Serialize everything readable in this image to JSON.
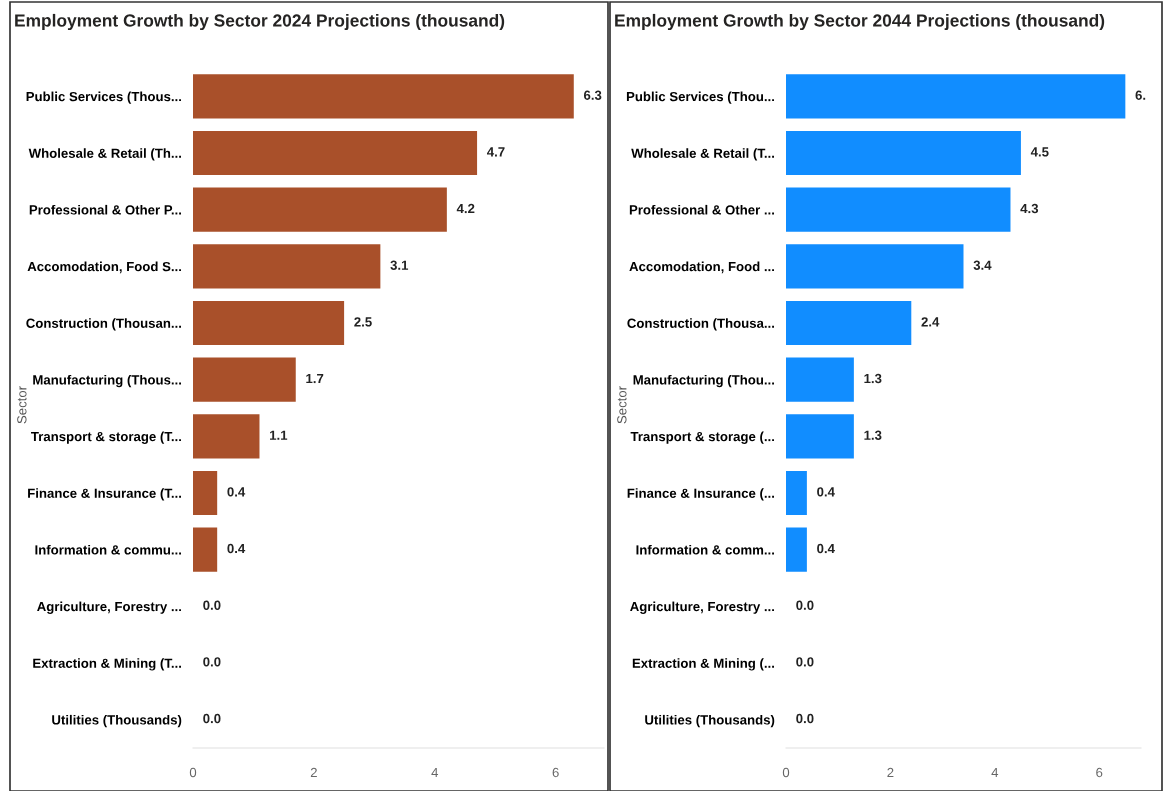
{
  "chart_data": [
    {
      "type": "bar",
      "orientation": "horizontal",
      "title": "Employment Growth by Sector 2024 Projections (thousand)",
      "ylabel": "Sector",
      "categories": [
        "Public Services (Thous...",
        "Wholesale & Retail (Th...",
        "Professional & Other P...",
        "Accomodation, Food S...",
        "Construction (Thousan...",
        "Manufacturing (Thous...",
        "Transport & storage (T...",
        "Finance & Insurance (T...",
        "Information & commu...",
        "Agriculture, Forestry ...",
        "Extraction & Mining (T...",
        "Utilities (Thousands)"
      ],
      "values": [
        6.3,
        4.7,
        4.2,
        3.1,
        2.5,
        1.7,
        1.1,
        0.4,
        0.4,
        0.0,
        0.0,
        0.0
      ],
      "value_labels": [
        "6.3",
        "4.7",
        "4.2",
        "3.1",
        "2.5",
        "1.7",
        "1.1",
        "0.4",
        "0.4",
        "0.0",
        "0.0",
        "0.0"
      ],
      "color": "#a9502a",
      "xlim": [
        0,
        6.8
      ],
      "xticks": [
        0,
        2,
        4,
        6
      ],
      "grid": false
    },
    {
      "type": "bar",
      "orientation": "horizontal",
      "title": "Employment Growth by Sector 2044 Projections (thousand)",
      "ylabel": "Sector",
      "categories": [
        "Public Services (Thou...",
        "Wholesale & Retail (T...",
        "Professional & Other ...",
        "Accomodation, Food ...",
        "Construction (Thousa...",
        "Manufacturing (Thou...",
        "Transport & storage (...",
        "Finance & Insurance (...",
        "Information & comm...",
        "Agriculture, Forestry ...",
        "Extraction & Mining (...",
        "Utilities (Thousands)"
      ],
      "values": [
        6.5,
        4.5,
        4.3,
        3.4,
        2.4,
        1.3,
        1.3,
        0.4,
        0.4,
        0.0,
        0.0,
        0.0
      ],
      "value_labels": [
        "6.",
        "4.5",
        "4.3",
        "3.4",
        "2.4",
        "1.3",
        "1.3",
        "0.4",
        "0.4",
        "0.0",
        "0.0",
        "0.0"
      ],
      "color": "#118dff",
      "xlim": [
        0,
        6.8
      ],
      "xticks": [
        0,
        2,
        4,
        6
      ],
      "grid": false
    }
  ]
}
